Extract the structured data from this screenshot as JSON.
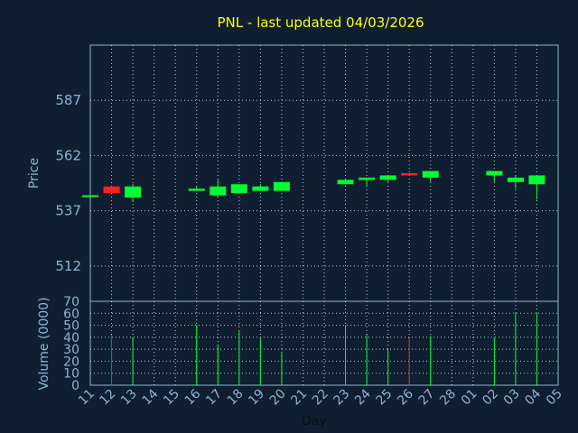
{
  "chart_data": {
    "type": "candlestick",
    "title": "PNL - last updated 04/03/2026",
    "price_label": "Price",
    "volume_label": "Volume (0000)",
    "xlabel": "Day",
    "price_ticks": [
      512,
      537,
      562,
      587
    ],
    "price_range": [
      496,
      612
    ],
    "volume_ticks": [
      0,
      10,
      20,
      30,
      40,
      50,
      60,
      70
    ],
    "volume_range": [
      0,
      70
    ],
    "x_ticks": [
      "11",
      "12",
      "13",
      "14",
      "15",
      "16",
      "17",
      "18",
      "19",
      "20",
      "21",
      "22",
      "23",
      "24",
      "25",
      "26",
      "27",
      "28",
      "01",
      "02",
      "03",
      "04",
      "05"
    ],
    "colors": {
      "up": "#00ff33",
      "down": "#ff2020",
      "grid": "#ffffff",
      "axis": "#8fb3cf",
      "title": "#ffff00",
      "background": "#0f1f31"
    },
    "candles": [
      {
        "day": "11",
        "open": 544,
        "high": 544,
        "low": 544,
        "close": 544,
        "volume": 0
      },
      {
        "day": "12",
        "open": 548,
        "high": 548,
        "low": 545,
        "close": 545,
        "volume": 42
      },
      {
        "day": "13",
        "open": 543,
        "high": 549,
        "low": 541,
        "close": 548,
        "volume": 40
      },
      {
        "day": "16",
        "open": 546,
        "high": 548,
        "low": 546,
        "close": 547,
        "volume": 50
      },
      {
        "day": "17",
        "open": 544,
        "high": 551,
        "low": 543,
        "close": 548,
        "volume": 34
      },
      {
        "day": "18",
        "open": 545,
        "high": 549,
        "low": 545,
        "close": 549,
        "volume": 45
      },
      {
        "day": "19",
        "open": 546,
        "high": 549,
        "low": 546,
        "close": 548,
        "volume": 39
      },
      {
        "day": "20",
        "open": 546,
        "high": 550,
        "low": 546,
        "close": 550,
        "volume": 28
      },
      {
        "day": "23",
        "open": 549,
        "high": 551,
        "low": 549,
        "close": 551,
        "volume": 50
      },
      {
        "day": "24",
        "open": 551,
        "high": 552,
        "low": 548,
        "close": 552,
        "volume": 42
      },
      {
        "day": "25",
        "open": 551,
        "high": 553,
        "low": 550,
        "close": 553,
        "volume": 30
      },
      {
        "day": "26",
        "open": 554,
        "high": 554,
        "low": 553,
        "close": 553,
        "volume": 39
      },
      {
        "day": "27",
        "open": 552,
        "high": 555,
        "low": 550,
        "close": 555,
        "volume": 41
      },
      {
        "day": "02",
        "open": 553,
        "high": 555,
        "low": 550,
        "close": 555,
        "volume": 40
      },
      {
        "day": "03",
        "open": 550,
        "high": 553,
        "low": 547,
        "close": 552,
        "volume": 60
      },
      {
        "day": "04",
        "open": 549,
        "high": 553,
        "low": 542,
        "close": 553,
        "volume": 61
      }
    ]
  }
}
